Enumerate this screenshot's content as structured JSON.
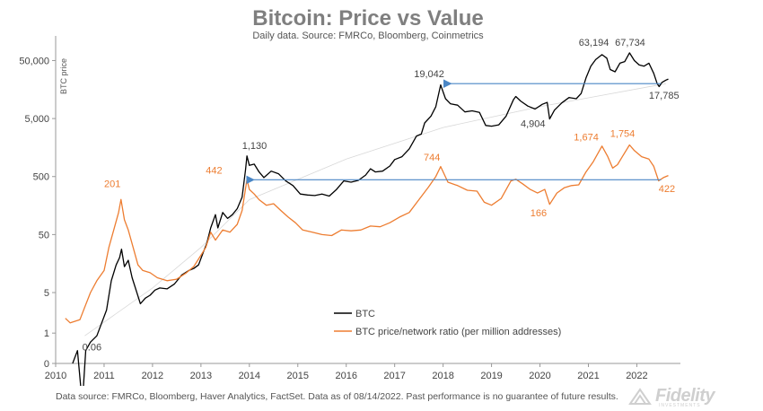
{
  "title": "Bitcoin: Price vs Value",
  "subtitle": "Daily data.  Source: FMRCo, Bloomberg, Coinmetrics",
  "footer": "Data source: FMRCo, Bloomberg, Haver Analytics, FactSet. Data as of 08/14/2022. Past performance is no guarantee of future results.",
  "logo": {
    "text": "Fidelity",
    "sub": "INVESTMENTS"
  },
  "chart_data": {
    "type": "line",
    "ylabel": "BTC price",
    "yscale": "log",
    "ylim": [
      0.3,
      100000
    ],
    "xlim": [
      2010,
      2022.9
    ],
    "y_ticks": [
      {
        "value": 0.3,
        "label": "0"
      },
      {
        "value": 1,
        "label": "1"
      },
      {
        "value": 5,
        "label": "5"
      },
      {
        "value": 50,
        "label": "50"
      },
      {
        "value": 500,
        "label": "500"
      },
      {
        "value": 5000,
        "label": "5,000"
      },
      {
        "value": 50000,
        "label": "50,000"
      }
    ],
    "x_ticks": [
      2010,
      2011,
      2012,
      2013,
      2014,
      2015,
      2016,
      2017,
      2018,
      2019,
      2020,
      2021,
      2022
    ],
    "legend_position": "bottom-center",
    "series": [
      {
        "name": "BTC",
        "color": "#000000",
        "points": [
          [
            2010.35,
            0.3
          ],
          [
            2010.45,
            0.5
          ],
          [
            2010.55,
            0.06
          ],
          [
            2010.62,
            0.5
          ],
          [
            2010.72,
            0.7
          ],
          [
            2010.85,
            0.9
          ],
          [
            2010.95,
            1.5
          ],
          [
            2011.05,
            2.5
          ],
          [
            2011.15,
            8
          ],
          [
            2011.25,
            15
          ],
          [
            2011.32,
            20
          ],
          [
            2011.36,
            28
          ],
          [
            2011.42,
            14
          ],
          [
            2011.5,
            18
          ],
          [
            2011.58,
            9
          ],
          [
            2011.66,
            5.5
          ],
          [
            2011.75,
            3.2
          ],
          [
            2011.85,
            4
          ],
          [
            2011.95,
            4.5
          ],
          [
            2012.05,
            5.5
          ],
          [
            2012.15,
            6
          ],
          [
            2012.3,
            5.8
          ],
          [
            2012.45,
            7
          ],
          [
            2012.6,
            10
          ],
          [
            2012.75,
            12
          ],
          [
            2012.85,
            13
          ],
          [
            2012.95,
            15
          ],
          [
            2013.05,
            25
          ],
          [
            2013.12,
            35
          ],
          [
            2013.2,
            65
          ],
          [
            2013.3,
            110
          ],
          [
            2013.35,
            65
          ],
          [
            2013.45,
            120
          ],
          [
            2013.55,
            95
          ],
          [
            2013.65,
            110
          ],
          [
            2013.75,
            140
          ],
          [
            2013.85,
            220
          ],
          [
            2013.92,
            650
          ],
          [
            2013.95,
            1130
          ],
          [
            2014.0,
            780
          ],
          [
            2014.1,
            820
          ],
          [
            2014.2,
            600
          ],
          [
            2014.3,
            480
          ],
          [
            2014.45,
            620
          ],
          [
            2014.6,
            560
          ],
          [
            2014.75,
            420
          ],
          [
            2014.9,
            350
          ],
          [
            2015.05,
            250
          ],
          [
            2015.2,
            240
          ],
          [
            2015.35,
            235
          ],
          [
            2015.5,
            250
          ],
          [
            2015.65,
            230
          ],
          [
            2015.8,
            300
          ],
          [
            2015.95,
            420
          ],
          [
            2016.1,
            400
          ],
          [
            2016.25,
            430
          ],
          [
            2016.4,
            530
          ],
          [
            2016.5,
            680
          ],
          [
            2016.6,
            600
          ],
          [
            2016.75,
            620
          ],
          [
            2016.9,
            760
          ],
          [
            2017.0,
            980
          ],
          [
            2017.15,
            1100
          ],
          [
            2017.3,
            1500
          ],
          [
            2017.45,
            2500
          ],
          [
            2017.55,
            2700
          ],
          [
            2017.62,
            4200
          ],
          [
            2017.75,
            5500
          ],
          [
            2017.85,
            8000
          ],
          [
            2017.95,
            19042
          ],
          [
            2018.05,
            11000
          ],
          [
            2018.15,
            9000
          ],
          [
            2018.3,
            8500
          ],
          [
            2018.45,
            6500
          ],
          [
            2018.6,
            6800
          ],
          [
            2018.75,
            6400
          ],
          [
            2018.88,
            3800
          ],
          [
            2019.0,
            3700
          ],
          [
            2019.15,
            3900
          ],
          [
            2019.3,
            5500
          ],
          [
            2019.45,
            10500
          ],
          [
            2019.5,
            12000
          ],
          [
            2019.6,
            10000
          ],
          [
            2019.75,
            8200
          ],
          [
            2019.9,
            7300
          ],
          [
            2020.05,
            8800
          ],
          [
            2020.15,
            9500
          ],
          [
            2020.2,
            4904
          ],
          [
            2020.3,
            7000
          ],
          [
            2020.45,
            9300
          ],
          [
            2020.6,
            11500
          ],
          [
            2020.75,
            11000
          ],
          [
            2020.85,
            13500
          ],
          [
            2020.95,
            25000
          ],
          [
            2021.05,
            40000
          ],
          [
            2021.15,
            52000
          ],
          [
            2021.28,
            63194
          ],
          [
            2021.38,
            55000
          ],
          [
            2021.45,
            35000
          ],
          [
            2021.55,
            32000
          ],
          [
            2021.65,
            45000
          ],
          [
            2021.75,
            48000
          ],
          [
            2021.85,
            67734
          ],
          [
            2021.95,
            50000
          ],
          [
            2022.05,
            42000
          ],
          [
            2022.15,
            40000
          ],
          [
            2022.25,
            45000
          ],
          [
            2022.35,
            30000
          ],
          [
            2022.42,
            20000
          ],
          [
            2022.46,
            17785
          ],
          [
            2022.52,
            21000
          ],
          [
            2022.6,
            23000
          ],
          [
            2022.65,
            24000
          ]
        ]
      },
      {
        "name": "BTC price/network ratio (per million addresses)",
        "color": "#ed7d31",
        "points": [
          [
            2010.2,
            1.8
          ],
          [
            2010.3,
            1.5
          ],
          [
            2010.4,
            1.6
          ],
          [
            2010.5,
            1.7
          ],
          [
            2010.6,
            2.8
          ],
          [
            2010.72,
            5
          ],
          [
            2010.85,
            8
          ],
          [
            2011.0,
            12
          ],
          [
            2011.1,
            30
          ],
          [
            2011.2,
            60
          ],
          [
            2011.3,
            120
          ],
          [
            2011.35,
            201
          ],
          [
            2011.42,
            90
          ],
          [
            2011.5,
            60
          ],
          [
            2011.6,
            30
          ],
          [
            2011.7,
            15
          ],
          [
            2011.8,
            12
          ],
          [
            2011.95,
            11
          ],
          [
            2012.1,
            9
          ],
          [
            2012.3,
            8
          ],
          [
            2012.5,
            8.5
          ],
          [
            2012.7,
            11
          ],
          [
            2012.85,
            14
          ],
          [
            2013.0,
            22
          ],
          [
            2013.1,
            30
          ],
          [
            2013.2,
            55
          ],
          [
            2013.3,
            40
          ],
          [
            2013.45,
            60
          ],
          [
            2013.6,
            55
          ],
          [
            2013.75,
            75
          ],
          [
            2013.85,
            130
          ],
          [
            2013.95,
            442
          ],
          [
            2014.0,
            300
          ],
          [
            2014.1,
            250
          ],
          [
            2014.2,
            200
          ],
          [
            2014.35,
            160
          ],
          [
            2014.5,
            170
          ],
          [
            2014.65,
            130
          ],
          [
            2014.8,
            100
          ],
          [
            2014.95,
            80
          ],
          [
            2015.1,
            60
          ],
          [
            2015.3,
            55
          ],
          [
            2015.5,
            50
          ],
          [
            2015.7,
            48
          ],
          [
            2015.9,
            60
          ],
          [
            2016.1,
            58
          ],
          [
            2016.3,
            60
          ],
          [
            2016.5,
            70
          ],
          [
            2016.7,
            68
          ],
          [
            2016.9,
            80
          ],
          [
            2017.1,
            100
          ],
          [
            2017.3,
            120
          ],
          [
            2017.5,
            200
          ],
          [
            2017.7,
            330
          ],
          [
            2017.85,
            500
          ],
          [
            2017.95,
            744
          ],
          [
            2018.1,
            400
          ],
          [
            2018.3,
            350
          ],
          [
            2018.5,
            290
          ],
          [
            2018.7,
            280
          ],
          [
            2018.85,
            180
          ],
          [
            2019.0,
            160
          ],
          [
            2019.2,
            210
          ],
          [
            2019.4,
            420
          ],
          [
            2019.5,
            450
          ],
          [
            2019.65,
            370
          ],
          [
            2019.8,
            300
          ],
          [
            2019.95,
            260
          ],
          [
            2020.1,
            300
          ],
          [
            2020.2,
            166
          ],
          [
            2020.35,
            260
          ],
          [
            2020.5,
            320
          ],
          [
            2020.65,
            350
          ],
          [
            2020.8,
            360
          ],
          [
            2020.95,
            600
          ],
          [
            2021.1,
            900
          ],
          [
            2021.28,
            1674
          ],
          [
            2021.4,
            1100
          ],
          [
            2021.5,
            700
          ],
          [
            2021.6,
            800
          ],
          [
            2021.7,
            1100
          ],
          [
            2021.85,
            1754
          ],
          [
            2021.95,
            1400
          ],
          [
            2022.1,
            1100
          ],
          [
            2022.25,
            1000
          ],
          [
            2022.35,
            750
          ],
          [
            2022.45,
            422
          ],
          [
            2022.55,
            480
          ],
          [
            2022.65,
            520
          ]
        ]
      }
    ],
    "trend_line": [
      [
        2010.6,
        0.9
      ],
      [
        2012,
        6
      ],
      [
        2013,
        30
      ],
      [
        2014,
        200
      ],
      [
        2016,
        1000
      ],
      [
        2018,
        3500
      ],
      [
        2020,
        8000
      ],
      [
        2022.6,
        20000
      ]
    ],
    "arrows": [
      {
        "from": [
          2022.5,
          20000
        ],
        "to": [
          2018.05,
          20000
        ]
      },
      {
        "from": [
          2022.5,
          440
        ],
        "to": [
          2013.98,
          440
        ]
      }
    ],
    "annotations": [
      {
        "text": "0.06",
        "x": 2010.55,
        "y": 0.5,
        "color": "#444444"
      },
      {
        "text": "201",
        "x": 2011.0,
        "y": 330,
        "color": "#ed7d31"
      },
      {
        "text": "442",
        "x": 2013.1,
        "y": 560,
        "color": "#ed7d31"
      },
      {
        "text": "1,130",
        "x": 2013.85,
        "y": 1500,
        "color": "#444444"
      },
      {
        "text": "744",
        "x": 2017.6,
        "y": 940,
        "color": "#ed7d31"
      },
      {
        "text": "19,042",
        "x": 2017.4,
        "y": 26000,
        "color": "#444444"
      },
      {
        "text": "4,904",
        "x": 2019.6,
        "y": 3600,
        "color": "#444444"
      },
      {
        "text": "166",
        "x": 2019.8,
        "y": 104,
        "color": "#ed7d31"
      },
      {
        "text": "63,194",
        "x": 2020.8,
        "y": 90000,
        "color": "#444444"
      },
      {
        "text": "67,734",
        "x": 2021.55,
        "y": 90000,
        "color": "#444444"
      },
      {
        "text": "1,674",
        "x": 2020.7,
        "y": 2100,
        "color": "#ed7d31"
      },
      {
        "text": "1,754",
        "x": 2021.45,
        "y": 2400,
        "color": "#ed7d31"
      },
      {
        "text": "17,785",
        "x": 2022.25,
        "y": 11000,
        "color": "#444444"
      },
      {
        "text": "422",
        "x": 2022.45,
        "y": 270,
        "color": "#ed7d31"
      }
    ]
  }
}
